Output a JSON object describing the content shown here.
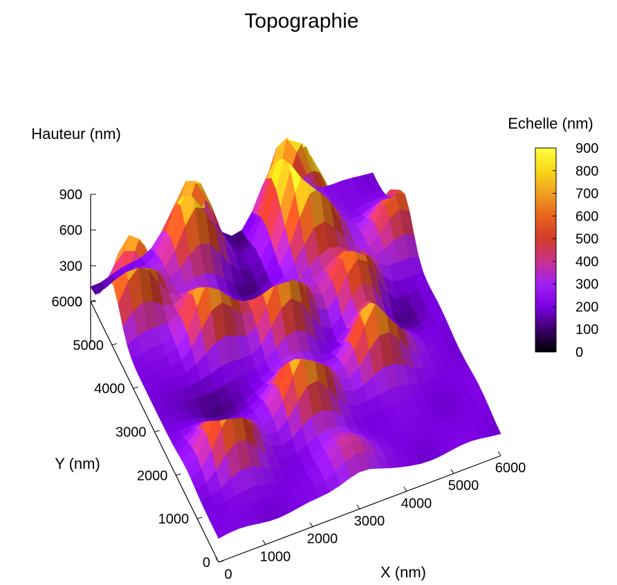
{
  "chart_data": {
    "type": "surface-3d",
    "title": "Topographie",
    "zlabel": "Hauteur (nm)",
    "xlabel": "X (nm)",
    "ylabel": "Y (nm)",
    "colorbar_label": "Echelle (nm)",
    "xlim": [
      0,
      6000
    ],
    "ylim": [
      0,
      6000
    ],
    "zlim": [
      0,
      900
    ],
    "x_ticks": [
      "0",
      "1000",
      "2000",
      "3000",
      "4000",
      "5000",
      "6000"
    ],
    "y_ticks": [
      "0",
      "1000",
      "2000",
      "3000",
      "4000",
      "5000",
      "6000"
    ],
    "z_ticks": [
      "0",
      "300",
      "600",
      "900"
    ],
    "colorbar_ticks": [
      "0",
      "100",
      "200",
      "300",
      "400",
      "500",
      "600",
      "700",
      "800",
      "900"
    ],
    "colormap": [
      "#000000",
      "#3b006a",
      "#7a00e0",
      "#a020f0",
      "#c8328c",
      "#d23c28",
      "#e6641e",
      "#f0a020",
      "#f8d818",
      "#ffff40"
    ],
    "grid": false,
    "baseline_nm": 200,
    "peaks": [
      {
        "x": 450,
        "y": 5000,
        "height": 880
      },
      {
        "x": 1650,
        "y": 4000,
        "height": 820
      },
      {
        "x": 3000,
        "y": 3600,
        "height": 850
      },
      {
        "x": 4550,
        "y": 3600,
        "height": 700
      },
      {
        "x": 2000,
        "y": 5600,
        "height": 870
      },
      {
        "x": 4000,
        "y": 5600,
        "height": 900
      },
      {
        "x": 4200,
        "y": 4900,
        "height": 820
      },
      {
        "x": 5800,
        "y": 4500,
        "height": 600
      },
      {
        "x": 900,
        "y": 1500,
        "height": 750
      },
      {
        "x": 2700,
        "y": 1900,
        "height": 850
      },
      {
        "x": 4400,
        "y": 2300,
        "height": 830
      },
      {
        "x": 3000,
        "y": 400,
        "height": 420
      }
    ],
    "pits": [
      {
        "x": 200,
        "y": 5800,
        "depth": 120
      },
      {
        "x": 3200,
        "y": 5800,
        "depth": 150
      },
      {
        "x": 2800,
        "y": 4800,
        "depth": 130
      },
      {
        "x": 1200,
        "y": 2700,
        "depth": 110
      },
      {
        "x": 4000,
        "y": 3000,
        "depth": 90
      },
      {
        "x": 5200,
        "y": 3200,
        "depth": 120
      }
    ]
  }
}
